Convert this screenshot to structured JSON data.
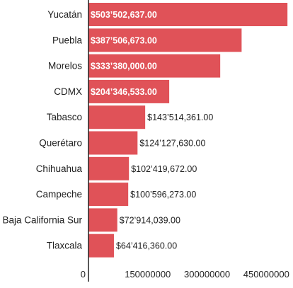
{
  "chart_data": {
    "type": "bar",
    "orientation": "horizontal",
    "categories": [
      "Yucatán",
      "Puebla",
      "Morelos",
      "CDMX",
      "Tabasco",
      "Querétaro",
      "Chihuahua",
      "Campeche",
      "Baja California Sur",
      "Tlaxcala"
    ],
    "values": [
      503502637,
      387506673,
      333380000,
      204346533,
      143514361,
      124127630,
      102419672,
      100596273,
      72914039,
      64416360
    ],
    "value_labels": [
      "$503’502,637.00",
      "$387’506,673.00",
      "$333’380,000.00",
      "$204’346,533.00",
      "$143’514,361.00",
      "$124’127,630.00",
      "$102’419,672.00",
      "$100’596,273.00",
      "$72’914,039.00",
      "$64’416,360.00"
    ],
    "xticks": [
      0,
      150000000,
      300000000,
      450000000
    ],
    "xtick_labels": [
      "0",
      "150000000",
      "300000000",
      "450000000"
    ],
    "xlim": [
      0,
      505000000
    ],
    "bar_color": "#e05258",
    "axis_color": "#222222",
    "title": "",
    "xlabel": "",
    "ylabel": "",
    "grid": false,
    "legend": "none"
  }
}
